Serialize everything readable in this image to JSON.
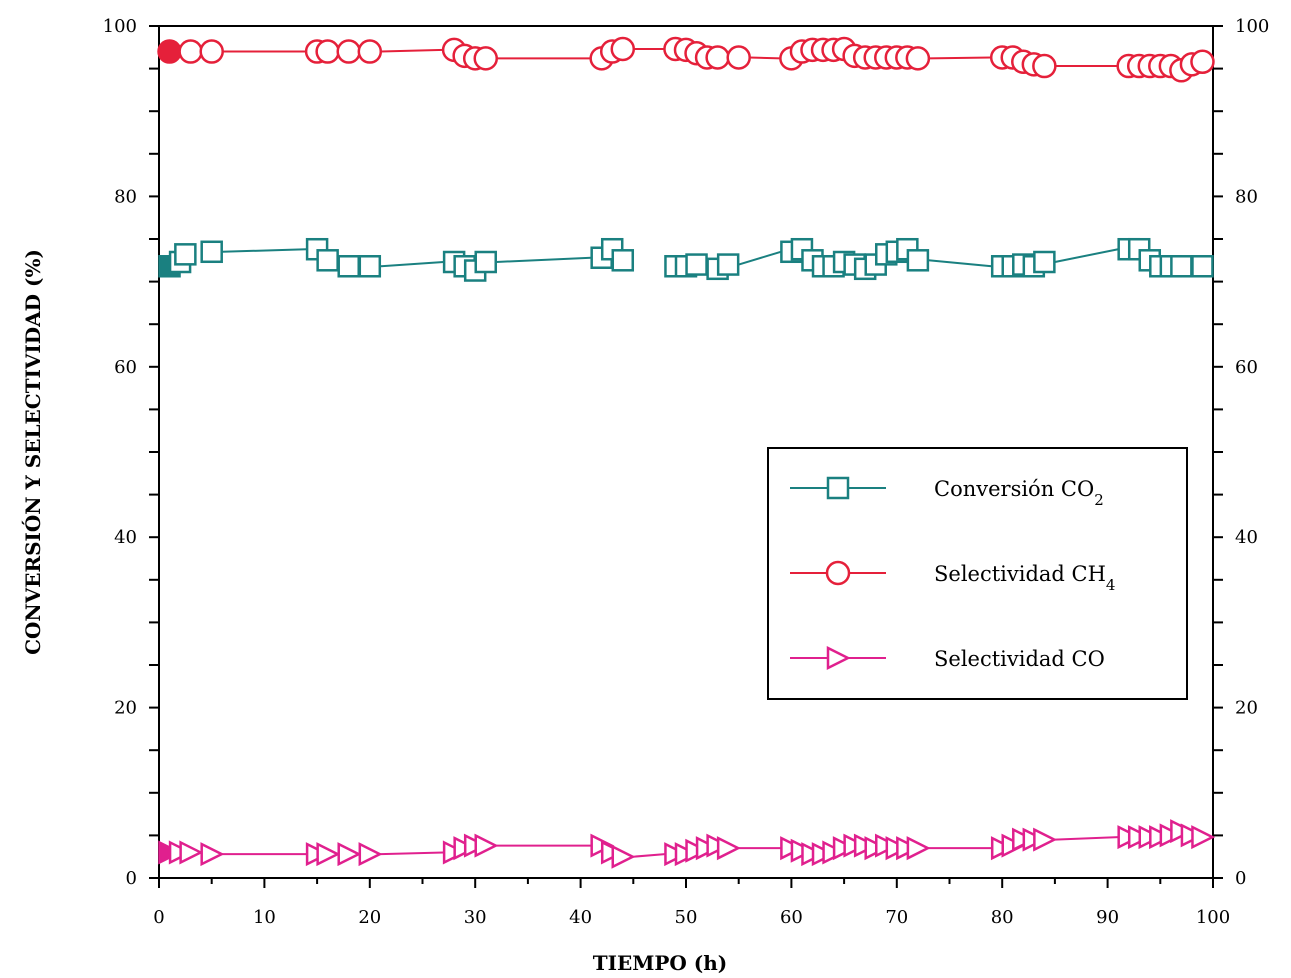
{
  "chart_data": {
    "type": "scatter",
    "xlabel": "TIEMPO (h)",
    "ylabel": "CONVERSIÓN Y SELECTIVIDAD (%)",
    "xlim": [
      0,
      100
    ],
    "ylim": [
      0,
      100
    ],
    "x_ticks": [
      "0",
      "10",
      "20",
      "30",
      "40",
      "50",
      "60",
      "70",
      "80",
      "90",
      "100"
    ],
    "y_ticks": [
      "0",
      "20",
      "40",
      "60",
      "80",
      "100"
    ],
    "y2_ticks": [
      "0",
      "20",
      "40",
      "60",
      "80",
      "100"
    ],
    "grid": false,
    "legend_position": "center-right",
    "series": [
      {
        "name": "Conversión CO₂",
        "legend_main": "Conversión CO",
        "legend_sub": "2",
        "marker": "square",
        "color": "#1a8080",
        "points": [
          [
            1,
            71.8
          ],
          [
            2,
            72.3
          ],
          [
            2.5,
            73.2
          ],
          [
            5,
            73.5
          ],
          [
            15,
            73.8
          ],
          [
            16,
            72.5
          ],
          [
            18,
            71.8
          ],
          [
            20,
            71.8
          ],
          [
            28,
            72.3
          ],
          [
            29,
            71.8
          ],
          [
            30,
            71.3
          ],
          [
            31,
            72.3
          ],
          [
            42,
            72.8
          ],
          [
            43,
            73.8
          ],
          [
            44,
            72.5
          ],
          [
            49,
            71.8
          ],
          [
            50,
            71.8
          ],
          [
            51,
            72
          ],
          [
            53,
            71.5
          ],
          [
            54,
            72
          ],
          [
            60,
            73.5
          ],
          [
            61,
            73.8
          ],
          [
            62,
            72.5
          ],
          [
            63,
            71.8
          ],
          [
            64,
            71.8
          ],
          [
            65,
            72.3
          ],
          [
            66,
            72
          ],
          [
            67,
            71.5
          ],
          [
            68,
            72
          ],
          [
            69,
            73.2
          ],
          [
            70,
            73.5
          ],
          [
            71,
            73.8
          ],
          [
            72,
            72.5
          ],
          [
            80,
            71.8
          ],
          [
            81,
            71.8
          ],
          [
            82,
            72
          ],
          [
            83,
            71.8
          ],
          [
            84,
            72.3
          ],
          [
            92,
            73.8
          ],
          [
            93,
            73.8
          ],
          [
            94,
            72.5
          ],
          [
            95,
            71.8
          ],
          [
            96,
            71.8
          ],
          [
            97,
            71.8
          ],
          [
            99,
            71.8
          ]
        ]
      },
      {
        "name": "Selectividad CH₄",
        "legend_main": "Selectividad CH",
        "legend_sub": "4",
        "marker": "circle",
        "color": "#e5203a",
        "points": [
          [
            1,
            97
          ],
          [
            3,
            97
          ],
          [
            5,
            97
          ],
          [
            15,
            97
          ],
          [
            16,
            97
          ],
          [
            18,
            97
          ],
          [
            20,
            97
          ],
          [
            28,
            97.2
          ],
          [
            29,
            96.5
          ],
          [
            30,
            96.2
          ],
          [
            31,
            96.2
          ],
          [
            42,
            96.2
          ],
          [
            43,
            97
          ],
          [
            44,
            97.3
          ],
          [
            49,
            97.3
          ],
          [
            50,
            97.2
          ],
          [
            51,
            96.8
          ],
          [
            52,
            96.3
          ],
          [
            53,
            96.3
          ],
          [
            55,
            96.3
          ],
          [
            60,
            96.2
          ],
          [
            61,
            97
          ],
          [
            62,
            97.2
          ],
          [
            63,
            97.2
          ],
          [
            64,
            97.2
          ],
          [
            65,
            97.3
          ],
          [
            66,
            96.5
          ],
          [
            67,
            96.3
          ],
          [
            68,
            96.3
          ],
          [
            69,
            96.3
          ],
          [
            70,
            96.3
          ],
          [
            71,
            96.3
          ],
          [
            72,
            96.2
          ],
          [
            80,
            96.3
          ],
          [
            81,
            96.3
          ],
          [
            82,
            95.8
          ],
          [
            83,
            95.5
          ],
          [
            84,
            95.3
          ],
          [
            92,
            95.3
          ],
          [
            93,
            95.3
          ],
          [
            94,
            95.3
          ],
          [
            95,
            95.3
          ],
          [
            96,
            95.3
          ],
          [
            97,
            94.8
          ],
          [
            98,
            95.5
          ],
          [
            99,
            95.8
          ]
        ]
      },
      {
        "name": "Selectividad CO",
        "legend_main": "Selectividad CO",
        "legend_sub": "",
        "marker": "triangle-right",
        "color": "#e0208e",
        "points": [
          [
            1,
            3
          ],
          [
            2,
            3
          ],
          [
            3,
            3
          ],
          [
            5,
            2.8
          ],
          [
            15,
            2.8
          ],
          [
            16,
            2.8
          ],
          [
            18,
            2.8
          ],
          [
            20,
            2.8
          ],
          [
            28,
            3
          ],
          [
            29,
            3.5
          ],
          [
            30,
            3.8
          ],
          [
            31,
            3.8
          ],
          [
            42,
            3.8
          ],
          [
            43,
            3
          ],
          [
            44,
            2.5
          ],
          [
            49,
            2.8
          ],
          [
            50,
            2.8
          ],
          [
            51,
            3.2
          ],
          [
            52,
            3.5
          ],
          [
            53,
            3.8
          ],
          [
            54,
            3.5
          ],
          [
            60,
            3.5
          ],
          [
            61,
            3.2
          ],
          [
            62,
            2.8
          ],
          [
            63,
            2.8
          ],
          [
            64,
            3
          ],
          [
            65,
            3.5
          ],
          [
            66,
            3.8
          ],
          [
            67,
            3.8
          ],
          [
            68,
            3.5
          ],
          [
            69,
            3.8
          ],
          [
            70,
            3.5
          ],
          [
            71,
            3.5
          ],
          [
            72,
            3.5
          ],
          [
            80,
            3.5
          ],
          [
            81,
            3.8
          ],
          [
            82,
            4.5
          ],
          [
            83,
            4.5
          ],
          [
            84,
            4.5
          ],
          [
            92,
            4.8
          ],
          [
            93,
            4.8
          ],
          [
            94,
            4.8
          ],
          [
            95,
            4.8
          ],
          [
            96,
            5
          ],
          [
            97,
            5.5
          ],
          [
            98,
            5
          ],
          [
            99,
            4.8
          ]
        ]
      }
    ],
    "lines": [
      {
        "series": 0,
        "segments": [
          [
            6,
            14
          ],
          [
            21,
            27
          ],
          [
            32,
            41
          ],
          [
            55,
            59
          ],
          [
            73,
            79
          ],
          [
            85,
            91
          ]
        ]
      },
      {
        "series": 1,
        "segments": [
          [
            6,
            14
          ],
          [
            21,
            27
          ],
          [
            32,
            41
          ],
          [
            45,
            48
          ],
          [
            56,
            59
          ],
          [
            73,
            79
          ],
          [
            85,
            91
          ]
        ]
      },
      {
        "series": 2,
        "segments": [
          [
            6,
            14
          ],
          [
            21,
            27
          ],
          [
            32,
            41
          ],
          [
            45,
            48
          ],
          [
            55,
            59
          ],
          [
            73,
            79
          ],
          [
            85,
            91
          ]
        ]
      }
    ]
  }
}
